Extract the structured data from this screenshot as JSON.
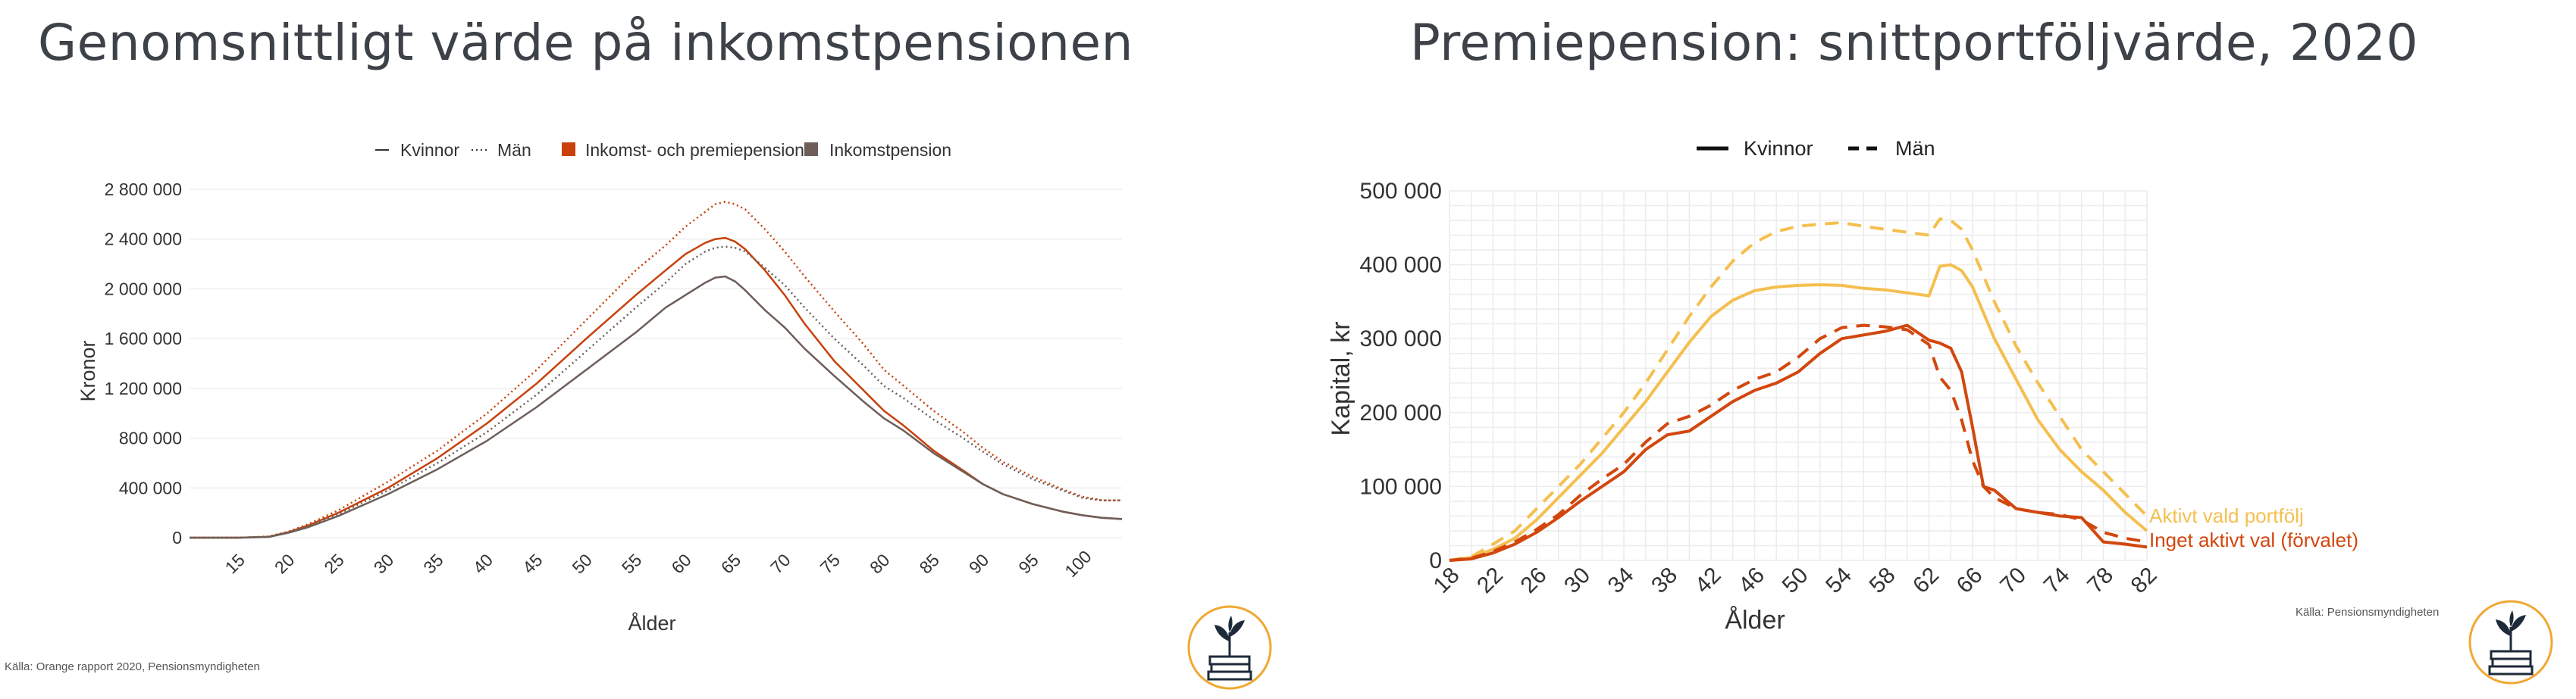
{
  "left_title": "Genomsnittligt värde på inkomstpensionen",
  "right_title": "Premiepension: snittportföljvärde, 2020",
  "left_source": "Källa: Orange rapport 2020, Pensionsmyndigheten",
  "right_source": "Källa: Pensionsmyndigheten",
  "colors": {
    "orange_dark": "#c8410b",
    "gray_brown": "#6d5e59",
    "yellow": "#f5bf4f",
    "red_orange": "#d2470e",
    "logo_ring": "#f0a830",
    "logo_ink": "#1e2a3a"
  },
  "icons": [
    "book-plant-logo-icon",
    "book-plant-logo-icon"
  ],
  "chart_data": [
    {
      "type": "line",
      "xlabel": "Ålder",
      "ylabel": "Kronor",
      "xlim": [
        10,
        104
      ],
      "ylim": [
        0,
        2800000
      ],
      "xticks": [
        "15",
        "20",
        "25",
        "30",
        "35",
        "40",
        "45",
        "50",
        "55",
        "60",
        "65",
        "70",
        "75",
        "80",
        "85",
        "90",
        "95",
        "100"
      ],
      "yticks": [
        "0",
        "400 000",
        "800 000",
        "1 200 000",
        "1 600 000",
        "2 000 000",
        "2 400 000",
        "2 800 000"
      ],
      "legend": [
        "Kvinnor",
        "Män",
        "Inkomst- och premiepension",
        "Inkomstpension"
      ],
      "legend_position": "top",
      "grid": "horizontal",
      "x": [
        10,
        15,
        18,
        20,
        22,
        25,
        30,
        35,
        40,
        45,
        50,
        55,
        58,
        60,
        62,
        63,
        64,
        65,
        66,
        68,
        70,
        72,
        75,
        78,
        80,
        82,
        85,
        88,
        90,
        92,
        95,
        98,
        100,
        102,
        104
      ],
      "series": [
        {
          "name": "Inkomst- och premiepension – Män",
          "style": "dotted",
          "color": "#c8410b",
          "values": [
            0,
            0,
            10000,
            50000,
            110000,
            220000,
            450000,
            700000,
            1000000,
            1350000,
            1750000,
            2150000,
            2350000,
            2500000,
            2620000,
            2680000,
            2700000,
            2680000,
            2640000,
            2480000,
            2300000,
            2100000,
            1820000,
            1550000,
            1350000,
            1220000,
            1020000,
            850000,
            720000,
            610000,
            490000,
            390000,
            330000,
            300000,
            300000
          ]
        },
        {
          "name": "Inkomst- och premiepension – Kvinnor",
          "style": "solid",
          "color": "#c8410b",
          "values": [
            0,
            0,
            8000,
            45000,
            100000,
            200000,
            400000,
            640000,
            920000,
            1240000,
            1600000,
            1950000,
            2150000,
            2280000,
            2370000,
            2400000,
            2410000,
            2380000,
            2320000,
            2150000,
            1950000,
            1720000,
            1420000,
            1180000,
            1020000,
            900000,
            700000,
            540000,
            430000,
            350000,
            270000,
            210000,
            180000,
            160000,
            150000
          ]
        },
        {
          "name": "Inkomstpension – Män",
          "style": "dotted",
          "color": "#6d5e59",
          "values": [
            0,
            0,
            8000,
            45000,
            95000,
            190000,
            380000,
            600000,
            850000,
            1150000,
            1500000,
            1850000,
            2050000,
            2200000,
            2300000,
            2330000,
            2340000,
            2330000,
            2300000,
            2170000,
            2030000,
            1850000,
            1600000,
            1380000,
            1220000,
            1120000,
            950000,
            800000,
            690000,
            590000,
            470000,
            380000,
            320000,
            300000,
            300000
          ]
        },
        {
          "name": "Inkomstpension – Kvinnor",
          "style": "solid",
          "color": "#6d5e59",
          "values": [
            0,
            0,
            6000,
            40000,
            85000,
            175000,
            350000,
            550000,
            780000,
            1050000,
            1350000,
            1650000,
            1850000,
            1950000,
            2050000,
            2090000,
            2100000,
            2060000,
            1990000,
            1830000,
            1690000,
            1520000,
            1300000,
            1090000,
            960000,
            860000,
            680000,
            530000,
            430000,
            350000,
            270000,
            210000,
            180000,
            160000,
            150000
          ]
        }
      ]
    },
    {
      "type": "line",
      "xlabel": "Ålder",
      "ylabel": "Kapital, kr",
      "xlim": [
        18,
        82
      ],
      "ylim": [
        0,
        500000
      ],
      "xticks": [
        "18",
        "22",
        "26",
        "30",
        "34",
        "38",
        "42",
        "46",
        "50",
        "54",
        "58",
        "62",
        "66",
        "70",
        "74",
        "78",
        "82"
      ],
      "yticks": [
        "0",
        "100 000",
        "200 000",
        "300 000",
        "400 000",
        "500 000"
      ],
      "legend": [
        "Kvinnor",
        "Män"
      ],
      "legend_position": "top",
      "grid": "both",
      "annotations": [
        "Aktivt vald portfölj",
        "Inget aktivt val (förvalet)"
      ],
      "x": [
        18,
        20,
        22,
        24,
        26,
        28,
        30,
        32,
        34,
        36,
        38,
        40,
        42,
        44,
        46,
        48,
        50,
        52,
        54,
        56,
        58,
        60,
        62,
        63,
        64,
        65,
        66,
        67,
        68,
        70,
        72,
        74,
        76,
        78,
        80,
        82
      ],
      "series": [
        {
          "name": "Aktivt vald portfölj – Män",
          "style": "dashed",
          "color": "#f5bf4f",
          "values": [
            0,
            5000,
            22000,
            40000,
            70000,
            100000,
            130000,
            165000,
            200000,
            240000,
            285000,
            330000,
            370000,
            405000,
            430000,
            445000,
            452000,
            455000,
            457000,
            452000,
            448000,
            444000,
            440000,
            462000,
            460000,
            448000,
            420000,
            385000,
            350000,
            290000,
            240000,
            195000,
            150000,
            120000,
            90000,
            60000
          ]
        },
        {
          "name": "Aktivt vald portfölj – Kvinnor",
          "style": "solid",
          "color": "#f5bf4f",
          "values": [
            0,
            4000,
            15000,
            30000,
            55000,
            85000,
            115000,
            145000,
            180000,
            215000,
            255000,
            295000,
            330000,
            352000,
            365000,
            370000,
            372000,
            373000,
            372000,
            368000,
            366000,
            362000,
            358000,
            398000,
            400000,
            392000,
            370000,
            335000,
            300000,
            245000,
            190000,
            150000,
            120000,
            95000,
            65000,
            40000
          ]
        },
        {
          "name": "Inget aktivt val (förvalet) – Män",
          "style": "dashed",
          "color": "#d2470e",
          "values": [
            0,
            3000,
            12000,
            25000,
            42000,
            62000,
            88000,
            110000,
            130000,
            160000,
            185000,
            195000,
            210000,
            230000,
            245000,
            255000,
            275000,
            300000,
            315000,
            318000,
            316000,
            312000,
            292000,
            248000,
            230000,
            190000,
            135000,
            100000,
            85000,
            70000,
            65000,
            62000,
            55000,
            38000,
            30000,
            25000
          ]
        },
        {
          "name": "Inget aktivt val (förvalet) – Kvinnor",
          "style": "solid",
          "color": "#d2470e",
          "values": [
            0,
            2000,
            10000,
            22000,
            38000,
            58000,
            80000,
            100000,
            120000,
            150000,
            170000,
            175000,
            195000,
            215000,
            230000,
            240000,
            255000,
            280000,
            300000,
            305000,
            310000,
            318000,
            298000,
            294000,
            287000,
            255000,
            180000,
            100000,
            95000,
            70000,
            65000,
            60000,
            58000,
            25000,
            22000,
            18000
          ]
        }
      ]
    }
  ]
}
